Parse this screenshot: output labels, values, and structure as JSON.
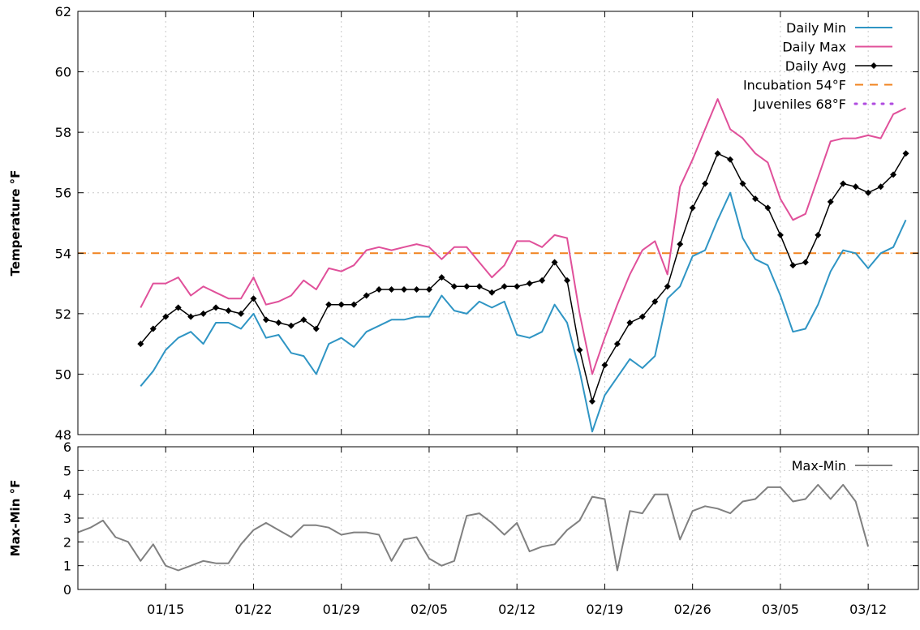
{
  "chart_data": [
    {
      "type": "line",
      "title": "",
      "ylabel": "Temperature °F",
      "xlabel": "",
      "ylim": [
        48,
        62
      ],
      "xlim": [
        "01/08",
        "03/16"
      ],
      "yticks": [
        48,
        50,
        52,
        54,
        56,
        58,
        60,
        62
      ],
      "xtick_labels": [
        "01/15",
        "01/22",
        "01/29",
        "02/05",
        "02/12",
        "02/19",
        "02/26",
        "03/05",
        "03/12"
      ],
      "grid": true,
      "legend": "top-right",
      "x": [
        "01/13",
        "01/14",
        "01/15",
        "01/16",
        "01/17",
        "01/18",
        "01/19",
        "01/20",
        "01/21",
        "01/22",
        "01/23",
        "01/24",
        "01/25",
        "01/26",
        "01/27",
        "01/28",
        "01/29",
        "01/30",
        "01/31",
        "02/01",
        "02/02",
        "02/03",
        "02/04",
        "02/05",
        "02/06",
        "02/07",
        "02/08",
        "02/09",
        "02/10",
        "02/11",
        "02/12",
        "02/13",
        "02/14",
        "02/15",
        "02/16",
        "02/17",
        "02/18",
        "02/19",
        "02/20",
        "02/21",
        "02/22",
        "02/23",
        "02/24",
        "02/25",
        "02/26",
        "02/27",
        "02/28",
        "03/01",
        "03/02",
        "03/03",
        "03/04",
        "03/05",
        "03/06",
        "03/07",
        "03/08",
        "03/09",
        "03/10",
        "03/11",
        "03/12",
        "03/13",
        "03/14",
        "03/15"
      ],
      "series": [
        {
          "name": "Daily Min",
          "color": "#2f95c4",
          "values": [
            49.6,
            50.1,
            50.8,
            51.2,
            51.4,
            51.0,
            51.7,
            51.7,
            51.5,
            52.0,
            51.2,
            51.3,
            50.7,
            50.6,
            50.0,
            51.0,
            51.2,
            50.9,
            51.4,
            51.6,
            51.8,
            51.8,
            51.9,
            51.9,
            52.6,
            52.1,
            52.0,
            52.4,
            52.2,
            52.4,
            51.3,
            51.2,
            51.4,
            52.3,
            51.7,
            50.1,
            48.1,
            49.3,
            49.9,
            50.5,
            50.2,
            50.6,
            52.5,
            52.9,
            53.9,
            54.1,
            55.1,
            56.0,
            54.5,
            53.8,
            53.6,
            52.6,
            51.4,
            51.5,
            52.3,
            53.4,
            54.1,
            54.0,
            53.5,
            54.0,
            54.2,
            55.1
          ]
        },
        {
          "name": "Daily Max",
          "color": "#e0509a",
          "values": [
            52.2,
            53.0,
            53.0,
            53.2,
            52.6,
            52.9,
            52.7,
            52.5,
            52.5,
            53.2,
            52.3,
            52.4,
            52.6,
            53.1,
            52.8,
            53.5,
            53.4,
            53.6,
            54.1,
            54.2,
            54.1,
            54.2,
            54.3,
            54.2,
            53.8,
            54.2,
            54.2,
            53.7,
            53.2,
            53.6,
            54.4,
            54.4,
            54.2,
            54.6,
            54.5,
            52.0,
            50.0,
            51.2,
            52.3,
            53.3,
            54.1,
            54.4,
            53.3,
            56.2,
            57.1,
            58.1,
            59.1,
            58.1,
            57.8,
            57.3,
            57.0,
            55.8,
            55.1,
            55.3,
            56.5,
            57.7,
            57.8,
            57.8,
            57.9,
            57.8,
            58.6,
            58.8
          ]
        },
        {
          "name": "Daily Avg",
          "color": "#000000",
          "markers": true,
          "values": [
            51.0,
            51.5,
            51.9,
            52.2,
            51.9,
            52.0,
            52.2,
            52.1,
            52.0,
            52.5,
            51.8,
            51.7,
            51.6,
            51.8,
            51.5,
            52.3,
            52.3,
            52.3,
            52.6,
            52.8,
            52.8,
            52.8,
            52.8,
            52.8,
            53.2,
            52.9,
            52.9,
            52.9,
            52.7,
            52.9,
            52.9,
            53.0,
            53.1,
            53.7,
            53.1,
            50.8,
            49.1,
            50.3,
            51.0,
            51.7,
            51.9,
            52.4,
            52.9,
            54.3,
            55.5,
            56.3,
            57.3,
            57.1,
            56.3,
            55.8,
            55.5,
            54.6,
            53.6,
            53.7,
            54.6,
            55.7,
            56.3,
            56.2,
            56.0,
            56.2,
            56.6,
            57.3
          ]
        },
        {
          "name": "Incubation 54°F",
          "color": "#f0821e",
          "style": "dashed",
          "constant": 54
        },
        {
          "name": "Juveniles 68°F",
          "color": "#b04ce0",
          "style": "dotted",
          "constant": 68
        }
      ]
    },
    {
      "type": "line",
      "title": "",
      "ylabel": "Max-Min °F",
      "xlabel": "",
      "ylim": [
        0,
        6
      ],
      "xlim": [
        "01/08",
        "03/16"
      ],
      "yticks": [
        0,
        1,
        2,
        3,
        4,
        5,
        6
      ],
      "grid": true,
      "legend": "top-right",
      "series": [
        {
          "name": "Max-Min",
          "color": "#808080",
          "x_start": "01/08",
          "values": [
            2.4,
            2.6,
            2.9,
            2.2,
            2.0,
            1.2,
            1.9,
            1.0,
            0.8,
            1.0,
            1.2,
            1.1,
            1.1,
            1.9,
            2.5,
            2.8,
            2.5,
            2.2,
            2.7,
            2.7,
            2.6,
            2.3,
            2.4,
            2.4,
            2.3,
            1.2,
            2.1,
            2.2,
            1.3,
            1.0,
            1.2,
            3.1,
            3.2,
            2.8,
            2.3,
            2.8,
            1.6,
            1.8,
            1.9,
            2.5,
            2.9,
            3.9,
            3.8,
            0.8,
            3.3,
            3.2,
            4.0,
            4.0,
            2.1,
            3.3,
            3.5,
            3.4,
            3.2,
            3.7,
            3.8,
            4.3,
            4.3,
            3.7,
            3.8,
            4.4,
            3.8,
            4.4,
            3.7,
            1.8
          ]
        }
      ]
    }
  ]
}
